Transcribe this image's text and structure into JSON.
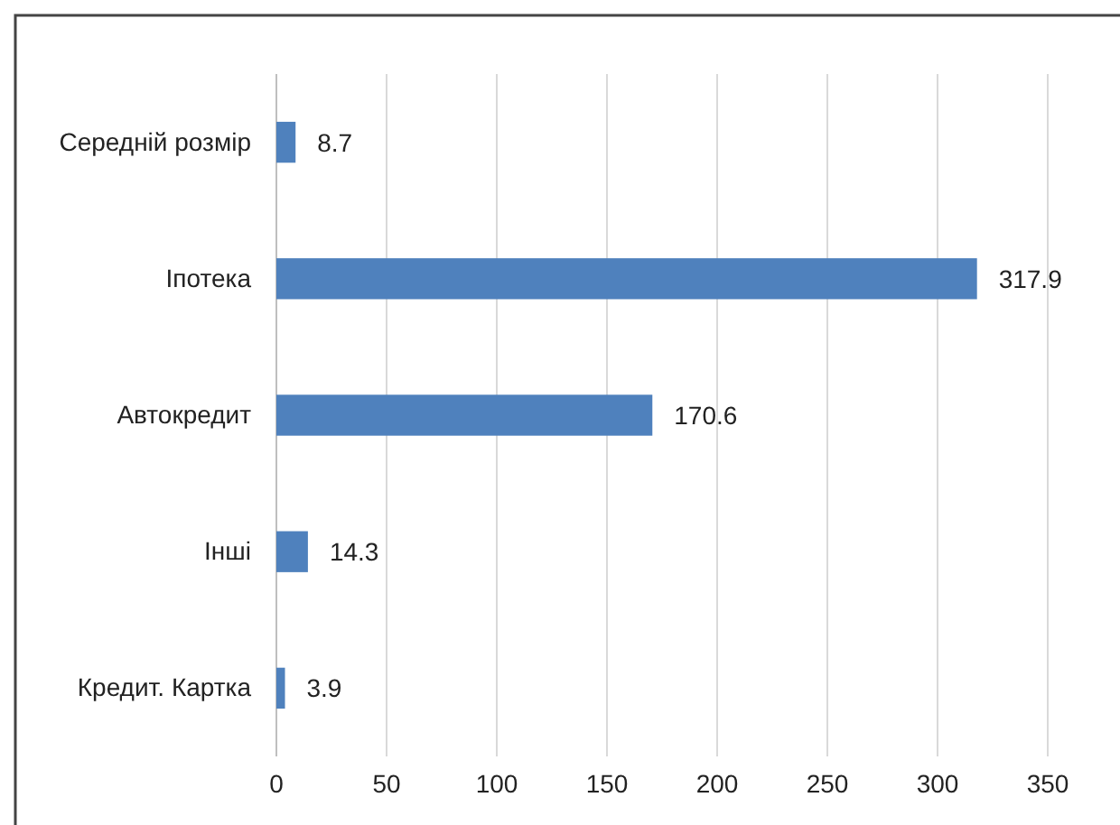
{
  "chart_data": {
    "type": "bar",
    "orientation": "horizontal",
    "categories": [
      "Середній розмір",
      "Іпотека",
      "Автокредит",
      "Інші",
      "Кредит. Картка"
    ],
    "values": [
      8.7,
      317.9,
      170.6,
      14.3,
      3.9
    ],
    "color": "#4f81bd",
    "xlim": [
      0,
      350
    ],
    "xticks": [
      0,
      50,
      100,
      150,
      200,
      250,
      300,
      350
    ],
    "grid": "x",
    "data_labels": true
  }
}
